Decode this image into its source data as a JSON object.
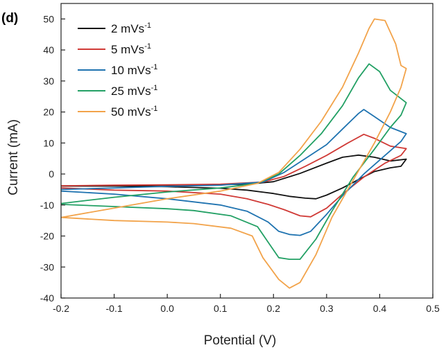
{
  "chart_data": {
    "type": "line",
    "panel_label": "(d)",
    "title": "",
    "xlabel": "Potential (V)",
    "ylabel": "Current (mA)",
    "xlim": [
      -0.2,
      0.5
    ],
    "ylim": [
      -40,
      55
    ],
    "xticks": [
      -0.2,
      -0.1,
      0.0,
      0.1,
      0.2,
      0.3,
      0.4,
      0.5
    ],
    "xtick_labels": [
      "-0.2",
      "-0.1",
      "0.0",
      "0.1",
      "0.2",
      "0.3",
      "0.4",
      "0.5"
    ],
    "yticks": [
      -40,
      -30,
      -20,
      -10,
      0,
      10,
      20,
      30,
      40,
      50
    ],
    "ytick_labels": [
      "-40",
      "-30",
      "-20",
      "-10",
      "0",
      "10",
      "20",
      "30",
      "40",
      "50"
    ],
    "grid": false,
    "legend_position": "top-left",
    "series": [
      {
        "name_main": "2 mVs",
        "name_sup": "-1",
        "color": "#111111",
        "points": [
          [
            -0.2,
            -3.8
          ],
          [
            -0.1,
            -3.7
          ],
          [
            0.0,
            -3.6
          ],
          [
            0.1,
            -3.4
          ],
          [
            0.15,
            -3.3
          ],
          [
            0.2,
            -2.5
          ],
          [
            0.25,
            0.2
          ],
          [
            0.3,
            3.5
          ],
          [
            0.33,
            5.4
          ],
          [
            0.36,
            6.1
          ],
          [
            0.39,
            5.4
          ],
          [
            0.42,
            4.2
          ],
          [
            0.45,
            4.8
          ],
          [
            0.44,
            2.5
          ],
          [
            0.42,
            2.0
          ],
          [
            0.39,
            0.8
          ],
          [
            0.36,
            -1.8
          ],
          [
            0.33,
            -4.5
          ],
          [
            0.3,
            -6.8
          ],
          [
            0.28,
            -8.0
          ],
          [
            0.26,
            -7.8
          ],
          [
            0.23,
            -7.2
          ],
          [
            0.2,
            -6.3
          ],
          [
            0.15,
            -5.2
          ],
          [
            0.1,
            -4.6
          ],
          [
            0.0,
            -4.1
          ],
          [
            -0.1,
            -3.9
          ],
          [
            -0.2,
            -3.9
          ]
        ]
      },
      {
        "name_main": "5 mVs",
        "name_sup": "-1",
        "color": "#d03a36",
        "points": [
          [
            -0.2,
            -3.8
          ],
          [
            -0.1,
            -3.6
          ],
          [
            0.0,
            -3.5
          ],
          [
            0.1,
            -3.3
          ],
          [
            0.18,
            -2.6
          ],
          [
            0.22,
            -0.8
          ],
          [
            0.26,
            2.5
          ],
          [
            0.3,
            6.0
          ],
          [
            0.34,
            10.0
          ],
          [
            0.37,
            12.8
          ],
          [
            0.39,
            11.5
          ],
          [
            0.42,
            9.0
          ],
          [
            0.45,
            8.2
          ],
          [
            0.44,
            6.0
          ],
          [
            0.41,
            3.5
          ],
          [
            0.37,
            -1.0
          ],
          [
            0.33,
            -6.5
          ],
          [
            0.3,
            -11.0
          ],
          [
            0.27,
            -13.8
          ],
          [
            0.25,
            -13.5
          ],
          [
            0.22,
            -11.5
          ],
          [
            0.19,
            -9.8
          ],
          [
            0.15,
            -8.0
          ],
          [
            0.1,
            -6.5
          ],
          [
            0.0,
            -5.5
          ],
          [
            -0.1,
            -5.2
          ],
          [
            -0.2,
            -4.5
          ]
        ]
      },
      {
        "name_main": "10 mVs",
        "name_sup": "-1",
        "color": "#1f73b0",
        "points": [
          [
            -0.2,
            -5.0
          ],
          [
            -0.1,
            -4.5
          ],
          [
            0.0,
            -4.0
          ],
          [
            0.1,
            -3.6
          ],
          [
            0.18,
            -2.6
          ],
          [
            0.22,
            0.5
          ],
          [
            0.26,
            5.0
          ],
          [
            0.3,
            9.5
          ],
          [
            0.33,
            14.5
          ],
          [
            0.36,
            19.5
          ],
          [
            0.37,
            20.8
          ],
          [
            0.39,
            18.5
          ],
          [
            0.42,
            15.0
          ],
          [
            0.45,
            13.0
          ],
          [
            0.44,
            10.5
          ],
          [
            0.41,
            6.0
          ],
          [
            0.37,
            0.0
          ],
          [
            0.33,
            -7.0
          ],
          [
            0.3,
            -13.0
          ],
          [
            0.27,
            -18.5
          ],
          [
            0.25,
            -19.8
          ],
          [
            0.23,
            -19.5
          ],
          [
            0.21,
            -18.5
          ],
          [
            0.19,
            -15.5
          ],
          [
            0.15,
            -12.0
          ],
          [
            0.1,
            -10.0
          ],
          [
            0.0,
            -8.0
          ],
          [
            -0.1,
            -6.5
          ],
          [
            -0.2,
            -5.5
          ]
        ]
      },
      {
        "name_main": "25 mVs",
        "name_sup": "-1",
        "color": "#22a064",
        "points": [
          [
            -0.2,
            -9.5
          ],
          [
            -0.1,
            -7.5
          ],
          [
            0.0,
            -5.8
          ],
          [
            0.1,
            -4.5
          ],
          [
            0.17,
            -3.0
          ],
          [
            0.21,
            0.0
          ],
          [
            0.25,
            6.0
          ],
          [
            0.29,
            13.0
          ],
          [
            0.33,
            22.0
          ],
          [
            0.36,
            31.0
          ],
          [
            0.38,
            35.5
          ],
          [
            0.4,
            33.0
          ],
          [
            0.42,
            27.0
          ],
          [
            0.45,
            23.0
          ],
          [
            0.44,
            19.0
          ],
          [
            0.42,
            15.0
          ],
          [
            0.39,
            8.0
          ],
          [
            0.35,
            -1.0
          ],
          [
            0.31,
            -12.0
          ],
          [
            0.28,
            -21.0
          ],
          [
            0.25,
            -27.5
          ],
          [
            0.23,
            -27.5
          ],
          [
            0.21,
            -27.0
          ],
          [
            0.19,
            -22.0
          ],
          [
            0.17,
            -17.0
          ],
          [
            0.12,
            -13.5
          ],
          [
            0.05,
            -11.8
          ],
          [
            0.0,
            -11.2
          ],
          [
            -0.1,
            -10.5
          ],
          [
            -0.2,
            -9.8
          ]
        ]
      },
      {
        "name_main": "50 mVs",
        "name_sup": "-1",
        "color": "#f2a34a",
        "points": [
          [
            -0.2,
            -14.0
          ],
          [
            -0.1,
            -11.0
          ],
          [
            0.0,
            -8.0
          ],
          [
            0.1,
            -5.5
          ],
          [
            0.17,
            -3.0
          ],
          [
            0.21,
            0.5
          ],
          [
            0.25,
            8.0
          ],
          [
            0.29,
            17.0
          ],
          [
            0.33,
            28.0
          ],
          [
            0.36,
            39.0
          ],
          [
            0.38,
            47.0
          ],
          [
            0.39,
            50.0
          ],
          [
            0.41,
            49.5
          ],
          [
            0.43,
            42.0
          ],
          [
            0.44,
            35.0
          ],
          [
            0.45,
            34.0
          ],
          [
            0.44,
            28.0
          ],
          [
            0.42,
            20.0
          ],
          [
            0.39,
            10.0
          ],
          [
            0.35,
            -2.0
          ],
          [
            0.31,
            -14.0
          ],
          [
            0.28,
            -26.0
          ],
          [
            0.25,
            -35.0
          ],
          [
            0.23,
            -36.8
          ],
          [
            0.21,
            -34.0
          ],
          [
            0.18,
            -27.0
          ],
          [
            0.16,
            -20.0
          ],
          [
            0.12,
            -17.5
          ],
          [
            0.05,
            -16.0
          ],
          [
            0.0,
            -15.5
          ],
          [
            -0.1,
            -15.0
          ],
          [
            -0.2,
            -14.0
          ]
        ]
      }
    ]
  }
}
